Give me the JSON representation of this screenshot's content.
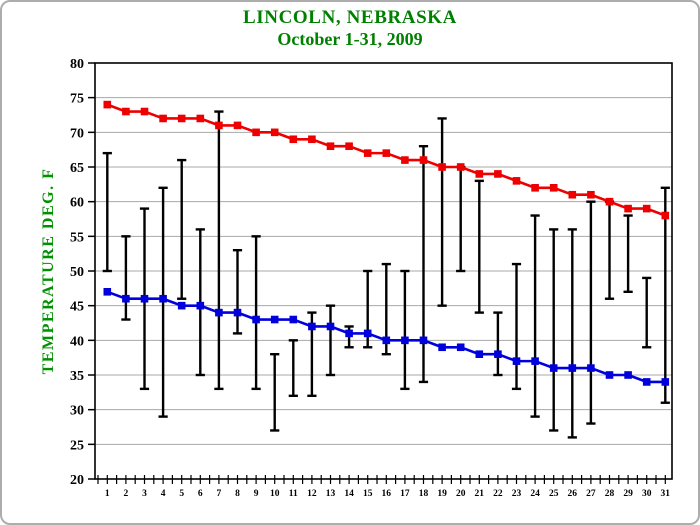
{
  "chart_data": {
    "type": "line",
    "title": "LINCOLN, NEBRASKA",
    "subtitle": "October 1-31, 2009",
    "xlabel": "",
    "ylabel": "TEMPERATURE DEG. F",
    "ylim": [
      20,
      80
    ],
    "ytick_step": 5,
    "y_tick_labels": [
      "20",
      "25",
      "30",
      "35",
      "40",
      "45",
      "50",
      "55",
      "60",
      "65",
      "70",
      "75",
      "80"
    ],
    "grid": "horizontal",
    "legend": "none",
    "x": [
      1,
      2,
      3,
      4,
      5,
      6,
      7,
      8,
      9,
      10,
      11,
      12,
      13,
      14,
      15,
      16,
      17,
      18,
      19,
      20,
      21,
      22,
      23,
      24,
      25,
      26,
      27,
      28,
      29,
      30,
      31
    ],
    "series": [
      {
        "name": "normal-high",
        "type": "line",
        "marker": "square",
        "color": "#ee0000",
        "values": [
          74,
          73,
          73,
          72,
          72,
          72,
          71,
          71,
          70,
          70,
          69,
          69,
          68,
          68,
          67,
          67,
          66,
          66,
          65,
          65,
          64,
          64,
          63,
          62,
          62,
          61,
          61,
          60,
          59,
          59,
          58
        ]
      },
      {
        "name": "normal-low",
        "type": "line",
        "marker": "square",
        "color": "#0000dd",
        "values": [
          47,
          46,
          46,
          46,
          45,
          45,
          44,
          44,
          43,
          43,
          43,
          42,
          42,
          41,
          41,
          40,
          40,
          40,
          39,
          39,
          38,
          38,
          37,
          37,
          36,
          36,
          36,
          35,
          35,
          34,
          34
        ]
      },
      {
        "name": "daily-temperature-range",
        "type": "errorbar",
        "color": "#000000",
        "high": [
          67,
          55,
          59,
          62,
          66,
          56,
          73,
          53,
          55,
          38,
          40,
          44,
          45,
          42,
          50,
          51,
          50,
          68,
          72,
          65,
          63,
          44,
          51,
          58,
          56,
          56,
          60,
          60,
          58,
          49,
          62
        ],
        "low": [
          50,
          43,
          33,
          29,
          46,
          35,
          33,
          41,
          33,
          27,
          32,
          32,
          35,
          39,
          39,
          38,
          33,
          34,
          45,
          50,
          44,
          35,
          33,
          29,
          27,
          26,
          28,
          46,
          47,
          39,
          31
        ]
      }
    ],
    "colors": {
      "title": "#008000",
      "axis_label": "#009100",
      "grid": "#a8a8a8",
      "frame": "#000000",
      "border": "#adadad",
      "background": "#ffffff"
    }
  }
}
